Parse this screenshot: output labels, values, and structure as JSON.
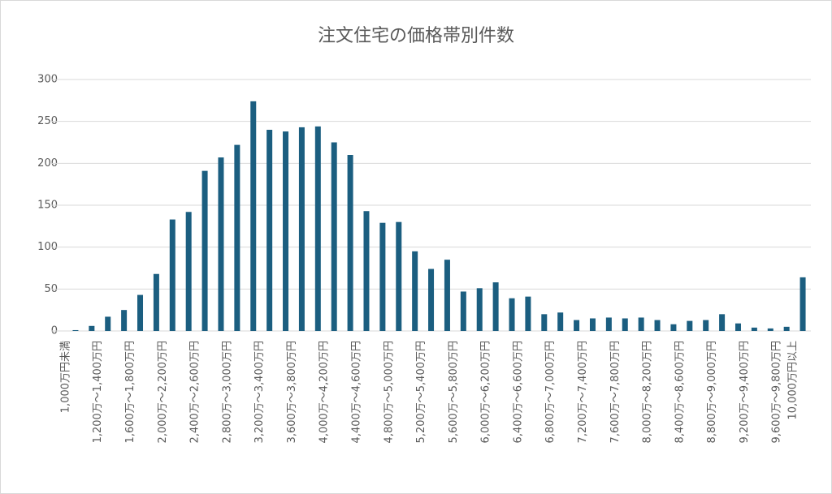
{
  "chart_data": {
    "type": "bar",
    "title": "注文住宅の価格帯別件数",
    "categories": [
      "1,000万円未満",
      null,
      "1,200万～1,400万円",
      null,
      "1,600万～1,800万円",
      null,
      "2,000万～2,200万円",
      null,
      "2,400万～2,600万円",
      null,
      "2,800万～3,000万円",
      null,
      "3,200万～3,400万円",
      null,
      "3,600万～3,800万円",
      null,
      "4,000万～4,200万円",
      null,
      "4,400万～4,600万円",
      null,
      "4,800万～5,000万円",
      null,
      "5,200万～5,400万円",
      null,
      "5,600万～5,800万円",
      null,
      "6,000万～6,200万円",
      null,
      "6,400万～6,600万円",
      null,
      "6,800万～7,000万円",
      null,
      "7,200万～7,400万円",
      null,
      "7,600万～7,800万円",
      null,
      "8,000万～8,200万円",
      null,
      "8,400万～8,600万円",
      null,
      "8,800万～9,000万円",
      null,
      "9,200万～9,400万円",
      null,
      "9,600万～9,800万円",
      "10,000万円以上"
    ],
    "values": [
      1,
      6,
      17,
      25,
      43,
      68,
      133,
      142,
      191,
      207,
      222,
      274,
      240,
      238,
      243,
      244,
      225,
      210,
      143,
      129,
      130,
      95,
      74,
      85,
      47,
      51,
      58,
      39,
      41,
      20,
      22,
      13,
      15,
      16,
      15,
      16,
      13,
      8,
      12,
      13,
      20,
      9,
      4,
      3,
      5,
      64
    ],
    "color": "#1b5e80",
    "ylim": [
      0,
      300
    ],
    "yticks": [
      0,
      50,
      100,
      150,
      200,
      250,
      300
    ],
    "grid": true
  }
}
